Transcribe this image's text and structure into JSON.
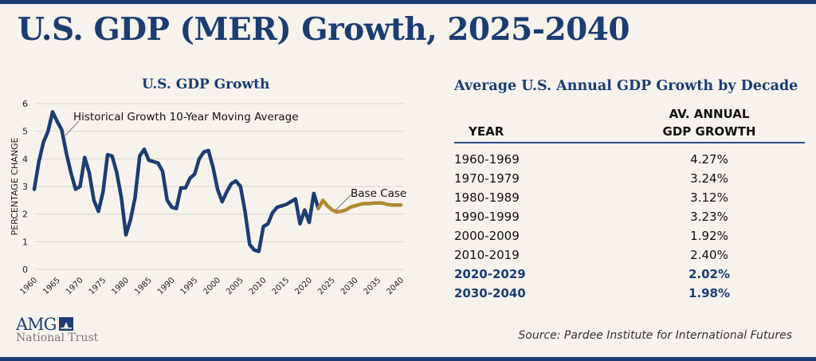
{
  "title": "U.S. GDP (MER) Growth, 2025-2040",
  "chart_data": {
    "type": "line",
    "title": "U.S. GDP Growth",
    "ylabel": "PERCENTAGE CHANGE",
    "xlabel": "",
    "xlim": [
      1960,
      2040
    ],
    "ylim": [
      0,
      6
    ],
    "grid": true,
    "x_ticks": [
      "1960",
      "1965",
      "1970",
      "1975",
      "1980",
      "1985",
      "1990",
      "1995",
      "2000",
      "2005",
      "2010",
      "2015",
      "2020",
      "2025",
      "2030",
      "2035",
      "2040"
    ],
    "y_ticks": [
      "0",
      "1",
      "2",
      "3",
      "4",
      "5",
      "6"
    ],
    "series": [
      {
        "name": "Historical Growth 10-Year Moving Average",
        "color": "#1c3d72",
        "x": [
          1960,
          1961,
          1962,
          1963,
          1964,
          1965,
          1966,
          1967,
          1968,
          1969,
          1970,
          1971,
          1972,
          1973,
          1974,
          1975,
          1976,
          1977,
          1978,
          1979,
          1980,
          1981,
          1982,
          1983,
          1984,
          1985,
          1986,
          1987,
          1988,
          1989,
          1990,
          1991,
          1992,
          1993,
          1994,
          1995,
          1996,
          1997,
          1998,
          1999,
          2000,
          2001,
          2002,
          2003,
          2004,
          2005,
          2006,
          2007,
          2008,
          2009,
          2010,
          2011,
          2012,
          2013,
          2014,
          2015,
          2016,
          2017,
          2018,
          2019,
          2020,
          2021,
          2022
        ],
        "y": [
          2.9,
          3.9,
          4.6,
          5.0,
          5.7,
          5.35,
          5.05,
          4.2,
          3.5,
          2.9,
          3.0,
          4.05,
          3.5,
          2.5,
          2.1,
          2.8,
          4.15,
          4.1,
          3.5,
          2.6,
          1.25,
          1.8,
          2.6,
          4.1,
          4.35,
          3.95,
          3.9,
          3.85,
          3.55,
          2.5,
          2.25,
          2.2,
          2.95,
          2.95,
          3.3,
          3.45,
          4.0,
          4.25,
          4.3,
          3.7,
          2.9,
          2.45,
          2.8,
          3.1,
          3.2,
          3.0,
          2.1,
          0.9,
          0.7,
          0.65,
          1.55,
          1.65,
          2.05,
          2.25,
          2.3,
          2.35,
          2.45,
          2.55,
          1.65,
          2.15,
          1.7,
          2.75,
          2.2
        ]
      },
      {
        "name": "Base Case",
        "color": "#b08a2e",
        "x": [
          2022,
          2023,
          2024,
          2025,
          2026,
          2027,
          2028,
          2029,
          2030,
          2031,
          2032,
          2033,
          2034,
          2035,
          2036,
          2037,
          2038,
          2039,
          2040
        ],
        "y": [
          2.2,
          2.5,
          2.3,
          2.15,
          2.08,
          2.1,
          2.15,
          2.25,
          2.3,
          2.35,
          2.38,
          2.38,
          2.4,
          2.4,
          2.4,
          2.35,
          2.33,
          2.33,
          2.33
        ]
      }
    ]
  },
  "table": {
    "title": "Average U.S. Annual GDP Growth by Decade",
    "col_year": "YEAR",
    "col_value_line1": "AV. ANNUAL",
    "col_value_line2": "GDP GROWTH",
    "rows": [
      {
        "year": "1960-1969",
        "value": "4.27%",
        "highlight": false
      },
      {
        "year": "1970-1979",
        "value": "3.24%",
        "highlight": false
      },
      {
        "year": "1980-1989",
        "value": "3.12%",
        "highlight": false
      },
      {
        "year": "1990-1999",
        "value": "3.23%",
        "highlight": false
      },
      {
        "year": "2000-2009",
        "value": "1.92%",
        "highlight": false
      },
      {
        "year": "2010-2019",
        "value": "2.40%",
        "highlight": false
      },
      {
        "year": "2020-2029",
        "value": "2.02%",
        "highlight": true
      },
      {
        "year": "2030-2040",
        "value": "1.98%",
        "highlight": true
      }
    ]
  },
  "source": "Source: Pardee Institute for International Futures",
  "logo": {
    "line1": "AMG",
    "line2": "National Trust"
  },
  "colors": {
    "navy": "#1c3d72",
    "gold": "#b08a2e",
    "background": "#f6f3ed"
  }
}
